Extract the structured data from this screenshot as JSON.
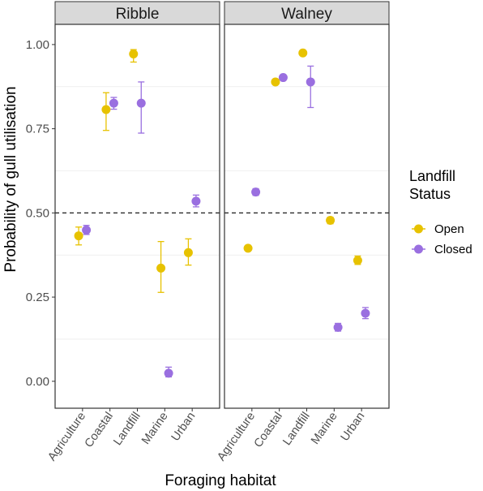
{
  "chart_data": {
    "type": "scatter",
    "xlabel": "Foraging habitat",
    "ylabel": "Probability of gull utilisation",
    "ylim": [
      -0.08,
      1.06
    ],
    "yticks": [
      "0.00",
      "0.25",
      "0.50",
      "0.75",
      "1.00"
    ],
    "yticks_values": [
      0,
      0.25,
      0.5,
      0.75,
      1.0
    ],
    "categories": [
      "Agriculture",
      "Coastal",
      "Landfill",
      "Marine",
      "Urban"
    ],
    "reference_line": 0.5,
    "legend": {
      "title_lines": [
        "Landfill",
        "Status"
      ],
      "position": "right",
      "entries": [
        {
          "name": "Open",
          "color": "#E7C200"
        },
        {
          "name": "Closed",
          "color": "#9A6FE0"
        }
      ]
    },
    "facets": [
      {
        "name": "Ribble",
        "series": [
          {
            "name": "Open",
            "points": [
              {
                "x": "Agriculture",
                "y": 0.432,
                "lo": 0.405,
                "hi": 0.458
              },
              {
                "x": "Coastal",
                "y": 0.807,
                "lo": 0.745,
                "hi": 0.857
              },
              {
                "x": "Landfill",
                "y": 0.972,
                "lo": 0.948,
                "hi": 0.985
              },
              {
                "x": "Marine",
                "y": 0.336,
                "lo": 0.264,
                "hi": 0.415
              },
              {
                "x": "Urban",
                "y": 0.382,
                "lo": 0.345,
                "hi": 0.423
              }
            ]
          },
          {
            "name": "Closed",
            "points": [
              {
                "x": "Agriculture",
                "y": 0.449,
                "lo": 0.436,
                "hi": 0.463
              },
              {
                "x": "Coastal",
                "y": 0.826,
                "lo": 0.808,
                "hi": 0.843
              },
              {
                "x": "Landfill",
                "y": 0.826,
                "lo": 0.737,
                "hi": 0.889
              },
              {
                "x": "Marine",
                "y": 0.024,
                "lo": 0.013,
                "hi": 0.042
              },
              {
                "x": "Urban",
                "y": 0.535,
                "lo": 0.518,
                "hi": 0.553
              }
            ]
          }
        ]
      },
      {
        "name": "Walney",
        "series": [
          {
            "name": "Open",
            "points": [
              {
                "x": "Agriculture",
                "y": 0.395,
                "lo": 0.389,
                "hi": 0.401
              },
              {
                "x": "Coastal",
                "y": 0.889,
                "lo": 0.884,
                "hi": 0.893
              },
              {
                "x": "Landfill",
                "y": 0.975,
                "lo": 0.968,
                "hi": 0.98
              },
              {
                "x": "Marine",
                "y": 0.478,
                "lo": 0.468,
                "hi": 0.487
              },
              {
                "x": "Urban",
                "y": 0.359,
                "lo": 0.347,
                "hi": 0.372
              }
            ]
          },
          {
            "name": "Closed",
            "points": [
              {
                "x": "Agriculture",
                "y": 0.562,
                "lo": 0.552,
                "hi": 0.572
              },
              {
                "x": "Coastal",
                "y": 0.902,
                "lo": 0.897,
                "hi": 0.907
              },
              {
                "x": "Landfill",
                "y": 0.889,
                "lo": 0.813,
                "hi": 0.936
              },
              {
                "x": "Marine",
                "y": 0.16,
                "lo": 0.149,
                "hi": 0.172
              },
              {
                "x": "Urban",
                "y": 0.202,
                "lo": 0.186,
                "hi": 0.219
              }
            ]
          }
        ]
      }
    ]
  }
}
